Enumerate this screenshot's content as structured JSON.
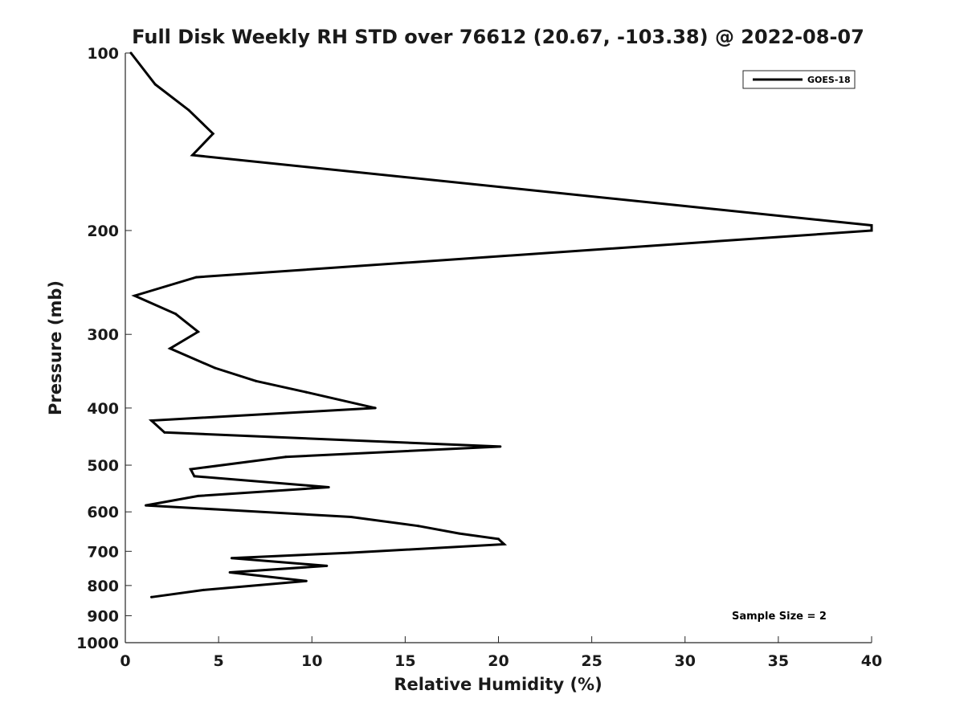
{
  "chart_data": {
    "type": "line",
    "title": "Full Disk Weekly RH STD over 76612 (20.67, -103.38) @ 2022-08-07",
    "xlabel": "Relative Humidity (%)",
    "ylabel": "Pressure (mb)",
    "xlim": [
      0,
      40
    ],
    "ylim": [
      100,
      1000
    ],
    "y_scale": "log",
    "y_reversed": true,
    "x_ticks": [
      0,
      5,
      10,
      15,
      20,
      25,
      30,
      35,
      40
    ],
    "x_tick_labels": [
      "0",
      "5",
      "10",
      "15",
      "20",
      "25",
      "30",
      "35",
      "40"
    ],
    "y_ticks": [
      100,
      200,
      300,
      400,
      500,
      600,
      700,
      800,
      900,
      1000
    ],
    "y_tick_labels": [
      "100",
      "200",
      "300",
      "400",
      "500",
      "600",
      "700",
      "800",
      "900",
      "1000"
    ],
    "grid": false,
    "legend_position": "top-right",
    "series": [
      {
        "name": "GOES-18",
        "color": "#000000",
        "x": [
          0.3,
          1.6,
          3.4,
          4.7,
          3.6,
          40.0,
          40.0,
          3.8,
          0.5,
          2.7,
          3.9,
          2.4,
          4.8,
          7.0,
          9.7,
          13.4,
          1.4,
          2.1,
          20.1,
          8.6,
          3.5,
          3.7,
          10.9,
          3.9,
          1.1,
          12.1,
          15.7,
          17.9,
          20.0,
          20.3,
          12.0,
          5.7,
          10.8,
          5.6,
          9.7,
          4.2,
          1.4
        ],
        "y": [
          100,
          113,
          125,
          137,
          149,
          196,
          200,
          240,
          258,
          277,
          297,
          317,
          342,
          360,
          376,
          400,
          420,
          440,
          465,
          484,
          508,
          522,
          545,
          564,
          585,
          612,
          634,
          653,
          667,
          681,
          704,
          719,
          741,
          760,
          786,
          814,
          837
        ]
      }
    ],
    "annotations": [
      "Sample Size = 2"
    ]
  }
}
